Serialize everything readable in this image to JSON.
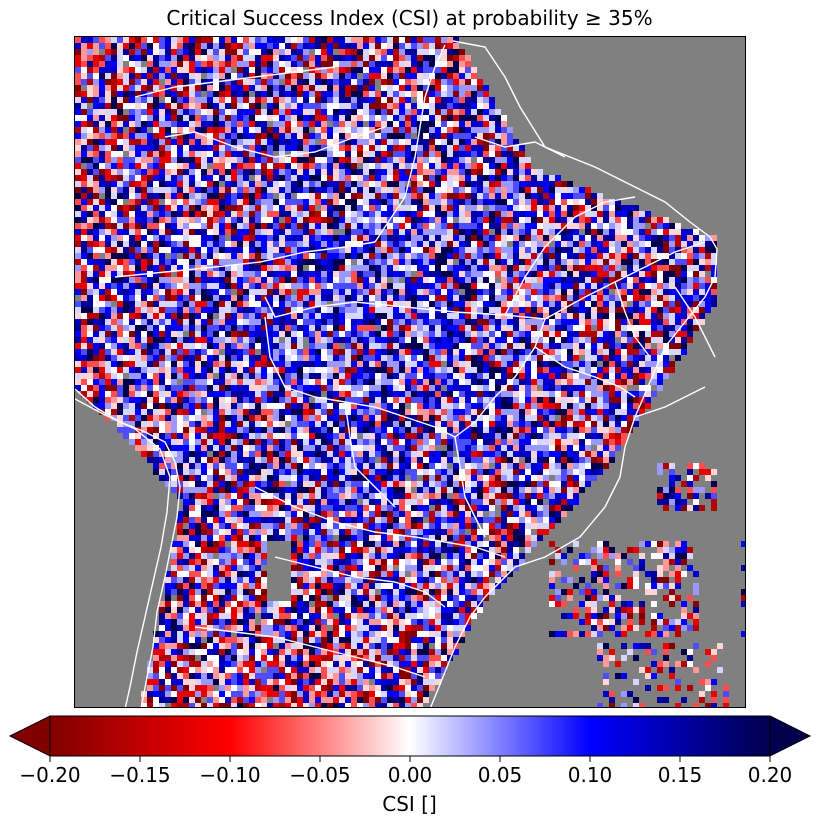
{
  "title": "Critical Success Index (CSI) at probability ≥ 35%",
  "colorbar": {
    "label": "CSI []",
    "min": -0.2,
    "max": 0.2,
    "extend": "both",
    "colormap": "seismic_r",
    "ticks": [
      "−0.20",
      "−0.15",
      "−0.10",
      "−0.05",
      "0.00",
      "0.05",
      "0.10",
      "0.15",
      "0.20"
    ]
  },
  "map": {
    "ocean_color": "#808080",
    "border_color": "#ffffff",
    "region": "South America (northern and central portion)"
  },
  "colors": {
    "dark_red": "#800000",
    "red": "#ff0000",
    "white": "#ffffff",
    "blue": "#0000ff",
    "dark_blue": "#00004d",
    "missing": "#808080"
  }
}
